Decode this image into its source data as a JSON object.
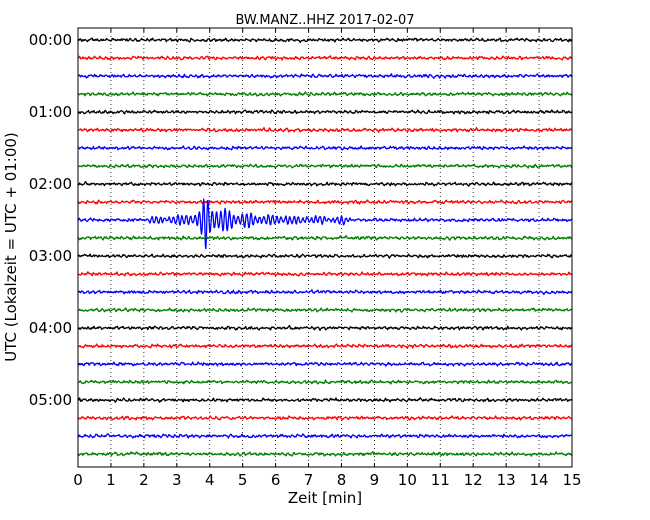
{
  "chart_data": {
    "type": "line",
    "title": "BW.MANZ..HHZ 2017-02-07",
    "xlabel": "Zeit  [min]",
    "ylabel": "UTC (Lokalzeit = UTC + 01:00)",
    "xlim": [
      0,
      15
    ],
    "x_ticks": [
      "0",
      "1",
      "2",
      "3",
      "4",
      "5",
      "6",
      "7",
      "8",
      "9",
      "10",
      "11",
      "12",
      "13",
      "14",
      "15"
    ],
    "y_ticks": [
      "00:00",
      "01:00",
      "02:00",
      "03:00",
      "04:00",
      "05:00"
    ],
    "trace_interval_min": 15,
    "trace_count": 24,
    "trace_colors": [
      "#000000",
      "#ff0000",
      "#0000ff",
      "#007f00"
    ],
    "grid": "vertical dotted",
    "event": {
      "trace_index": 10,
      "start_min": 2.0,
      "peak_min": 3.85,
      "end_min": 8.3
    }
  }
}
